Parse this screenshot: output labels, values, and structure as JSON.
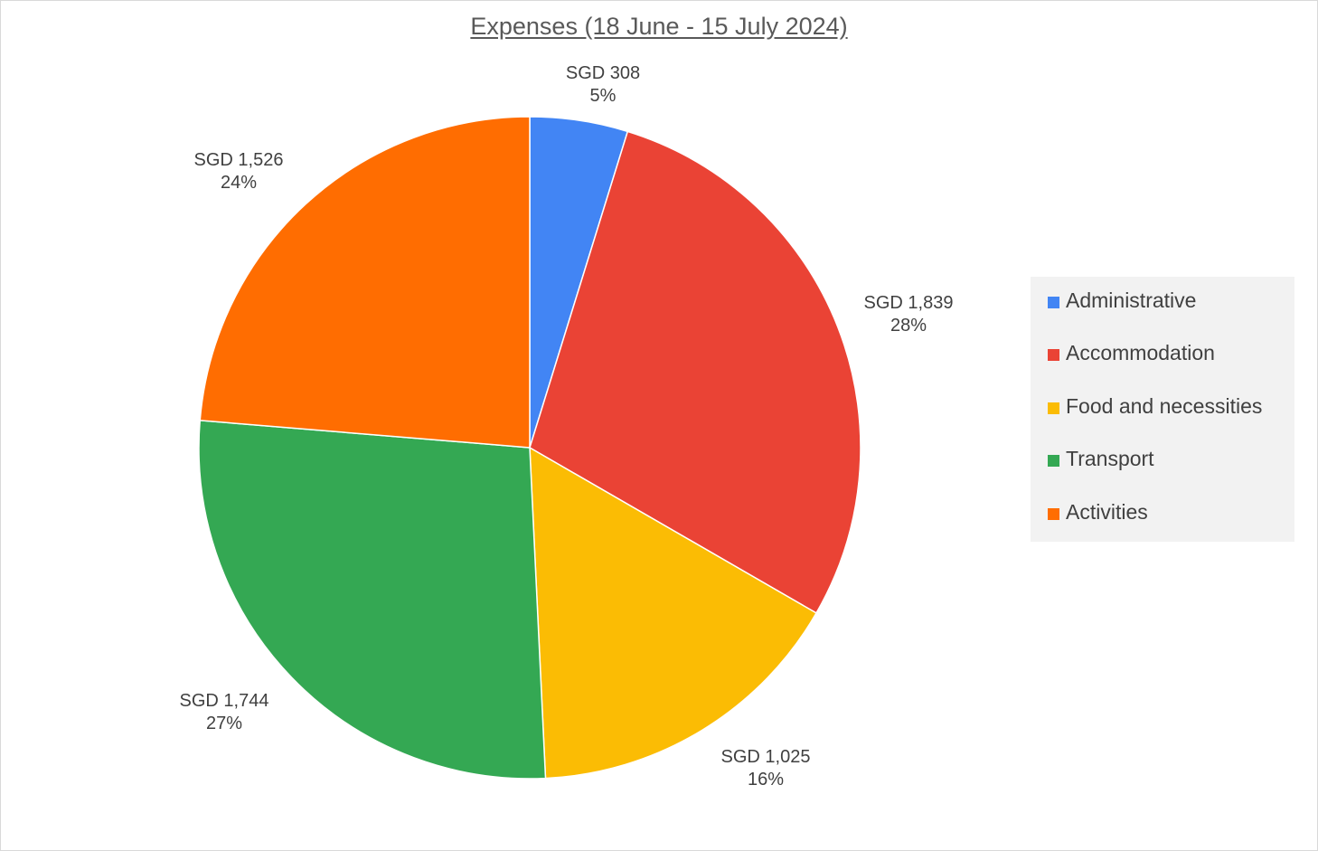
{
  "chart_data": {
    "type": "pie",
    "title": "Expenses (18 June - 15 July 2024)",
    "categories": [
      "Administrative",
      "Accommodation",
      "Food and necessities",
      "Transport",
      "Activities"
    ],
    "values": [
      308,
      1839,
      1025,
      1744,
      1526
    ],
    "value_labels": [
      "SGD 308",
      "SGD 1,839",
      "SGD 1,025",
      "SGD 1,744",
      "SGD 1,526"
    ],
    "percent_labels": [
      "5%",
      "28%",
      "16%",
      "27%",
      "24%"
    ],
    "colors": [
      "#4285F4",
      "#EA4335",
      "#FBBC04",
      "#34A853",
      "#FF6D01"
    ],
    "legend_position": "right",
    "start_angle": "12 o'clock",
    "direction": "clockwise"
  }
}
